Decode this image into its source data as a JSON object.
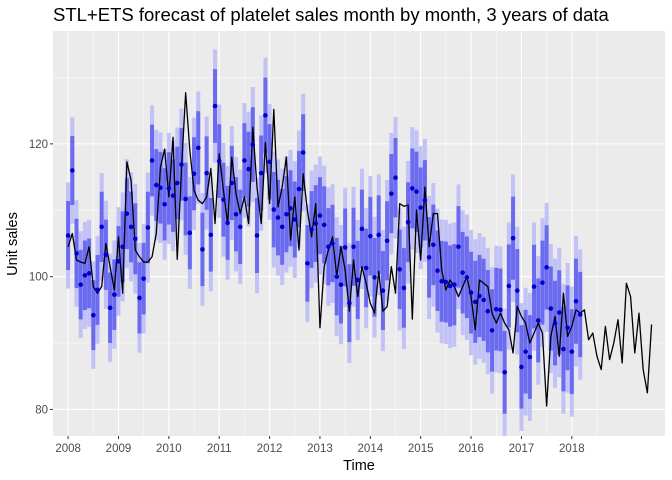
{
  "chart_data": {
    "type": "line",
    "title": "STL+ETS forecast of platelet sales month by month, 3 years of data",
    "xlabel": "Time",
    "ylabel": "Unit sales",
    "xlim": [
      2007.7,
      2019.85
    ],
    "ylim": [
      76,
      137
    ],
    "x_ticks": [
      2008,
      2009,
      2010,
      2011,
      2012,
      2013,
      2014,
      2015,
      2016,
      2017,
      2018
    ],
    "x_tick_labels": [
      "2008",
      "2009",
      "2010",
      "2011",
      "2012",
      "2013",
      "2014",
      "2015",
      "2016",
      "2017",
      "2018"
    ],
    "y_ticks": [
      80,
      100,
      120
    ],
    "y_tick_labels": [
      "80",
      "100",
      "120"
    ],
    "grid": true,
    "legend": "none",
    "colors": {
      "panel_background": "#ebebeb",
      "grid_major": "#ffffff",
      "actual_line": "#000000",
      "forecast_point": "#0000cc",
      "interval_80": "#6b6bf0",
      "interval_95": "#c2c2f7"
    },
    "x_start": 2008.0,
    "x_step": 0.0833333,
    "series": [
      {
        "kind": "actual",
        "values": [
          104.5,
          106.5,
          102.5,
          102.2,
          102.0,
          104.5,
          98.5,
          97.5,
          98.5,
          105.0,
          101.5,
          98.0,
          106.0,
          97.5,
          117.3,
          114.5,
          104.0,
          103.0,
          102.2,
          102.2,
          103.0,
          106.5,
          116.5,
          119.2,
          112.0,
          121.0,
          102.6,
          116.0,
          127.7,
          119.0,
          113.0,
          111.5,
          111.0,
          112.0,
          116.3,
          108.0,
          118.5,
          113.0,
          108.0,
          118.0,
          112.5,
          109.5,
          112.0,
          108.0,
          122.5,
          113.5,
          108.0,
          120.2,
          111.0,
          125.2,
          110.5,
          113.5,
          118.0,
          105.5,
          112.0,
          104.0,
          115.5,
          110.0,
          106.0,
          111.0,
          92.3,
          101.5,
          104.0,
          106.0,
          100.0,
          104.5,
          101.0,
          94.8,
          102.5,
          97.0,
          101.5,
          99.0,
          96.0,
          94.5,
          100.8,
          94.8,
          95.5,
          101.5,
          97.5,
          111.0,
          110.6,
          110.8,
          93.6,
          110.0,
          102.5,
          113.5,
          104.5,
          109.5,
          109.5,
          101.0,
          98.0,
          99.5,
          98.5,
          97.0,
          98.5,
          100.0,
          97.0,
          92.0,
          99.5,
          99.0,
          98.5,
          94.5,
          93.0,
          94.5,
          93.0,
          92.0,
          88.5,
          95.5,
          94.0,
          93.0,
          90.0,
          91.5,
          93.0,
          91.5,
          80.5,
          91.0,
          94.0,
          88.0,
          97.5,
          91.0,
          92.5,
          95.0,
          94.5,
          95.0,
          90.5,
          91.5,
          88.0,
          86.0,
          92.5,
          87.5,
          90.0,
          93.5,
          87.0,
          99.0,
          97.0,
          88.5,
          94.5,
          86.0,
          82.5,
          92.8
        ]
      },
      {
        "kind": "forecast",
        "values": [
          106.2,
          116.0,
          103.5,
          98.8,
          100.2,
          100.5,
          94.2,
          98.0,
          107.5,
          103.3,
          95.3,
          97.3,
          102.3,
          104.5,
          109.5,
          107.5,
          105.7,
          96.8,
          99.7,
          107.4,
          117.5,
          113.8,
          113.4,
          110.9,
          113.3,
          112.2,
          114.1,
          116.9,
          111.7,
          106.6,
          115.5,
          119.4,
          104.1,
          115.6,
          106.3,
          125.7,
          117.4,
          111.6,
          108.1,
          114.1,
          109.4,
          107.5,
          117.5,
          116.2,
          119.9,
          106.2,
          115.6,
          124.3,
          117.3,
          110.1,
          108.9,
          107.5,
          109.4,
          110.3,
          108.6,
          113.2,
          118.7,
          102.0,
          107.1,
          108.0,
          109.2,
          107.8,
          104.5,
          105.0,
          100.0,
          98.8,
          104.4,
          96.0,
          104.5,
          99.5,
          107.2,
          101.3,
          106.1,
          99.9,
          106.3,
          97.9,
          105.4,
          112.5,
          114.9,
          101.1,
          98.3,
          108.2,
          113.3,
          112.8,
          110.4,
          111.5,
          102.9,
          104.8,
          100.9,
          99.3,
          99.2,
          98.6,
          98.8,
          104.5,
          100.6,
          99.9,
          97.6,
          96.2,
          97.1,
          96.5,
          94.8,
          91.9,
          95.1,
          95.0,
          85.6,
          98.6,
          105.8,
          97.9,
          86.4,
          88.7,
          87.9,
          98.5,
          93.4,
          99.1,
          101.4,
          95.2,
          93.0,
          94.6,
          89.1,
          92.3,
          88.7,
          96.3,
          94.3
        ]
      }
    ]
  }
}
